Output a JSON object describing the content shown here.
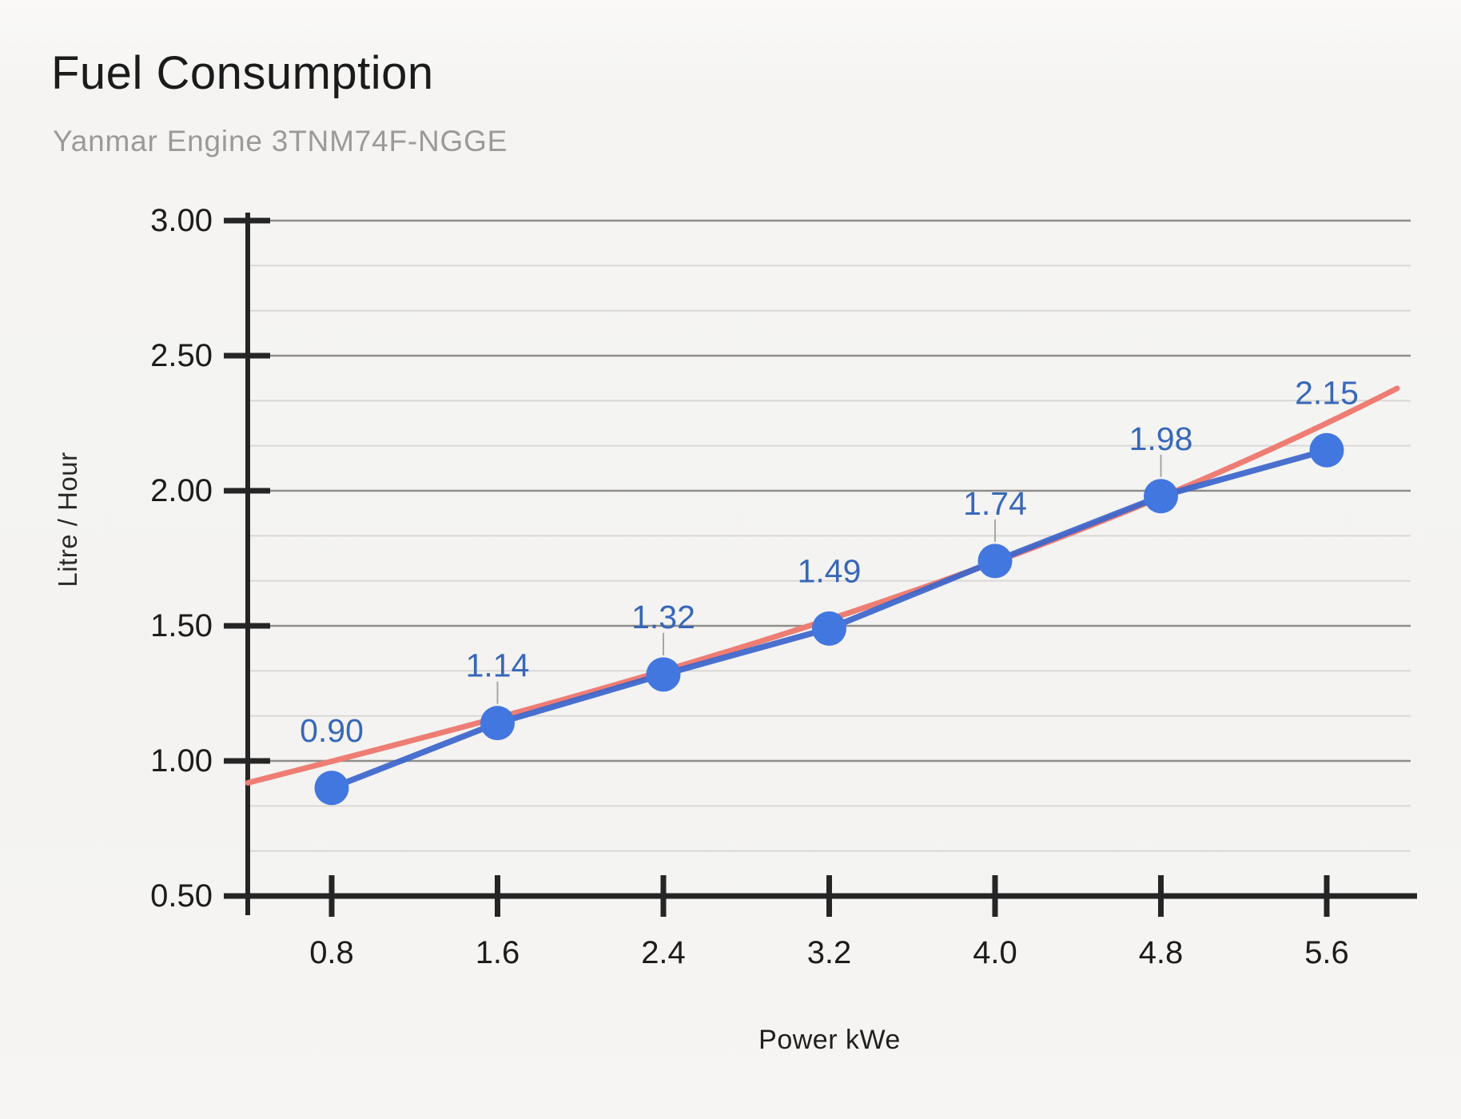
{
  "header": {
    "title": "Fuel Consumption",
    "subtitle": "Yanmar Engine 3TNM74F-NGGE"
  },
  "chart_data": {
    "type": "line",
    "title": "Fuel Consumption",
    "subtitle": "Yanmar Engine 3TNM74F-NGGE",
    "xlabel": "Power kWe",
    "ylabel": "Litre / Hour",
    "x": [
      0.8,
      1.6,
      2.4,
      3.2,
      4.0,
      4.8,
      5.6
    ],
    "x_ticks": [
      "0.8",
      "1.6",
      "2.4",
      "3.2",
      "4.0",
      "4.8",
      "5.6"
    ],
    "y_ticks": [
      "3.00",
      "2.50",
      "2.00",
      "1.50",
      "1.00",
      "0.50"
    ],
    "ylim": [
      0.5,
      3.0
    ],
    "grid": {
      "major_step": 0.5,
      "minor_lines_between_majors": 2,
      "legend": "none"
    },
    "series": [
      {
        "name": "fuel-consumption",
        "kind": "line-with-points",
        "values": [
          0.9,
          1.14,
          1.32,
          1.49,
          1.74,
          1.98,
          2.15
        ],
        "point_labels": [
          "0.90",
          "1.14",
          "1.32",
          "1.49",
          "1.74",
          "1.98",
          "2.15"
        ],
        "leader_line_indices": [
          1,
          2,
          4,
          5
        ],
        "line_color": "#3b65cc",
        "point_color": "#4377e0",
        "label_color": "#3767b8"
      },
      {
        "name": "trendline",
        "kind": "smooth-trendline",
        "color": "#ee7d74",
        "start_value": 0.91,
        "end_value": 2.37
      }
    ],
    "colors": {
      "axis": "#252525",
      "major_grid": "#8f8d89",
      "minor_grid": "#d9d7d4",
      "tick_label": "#1c1c1c",
      "leader": "#a9a7a4"
    }
  }
}
